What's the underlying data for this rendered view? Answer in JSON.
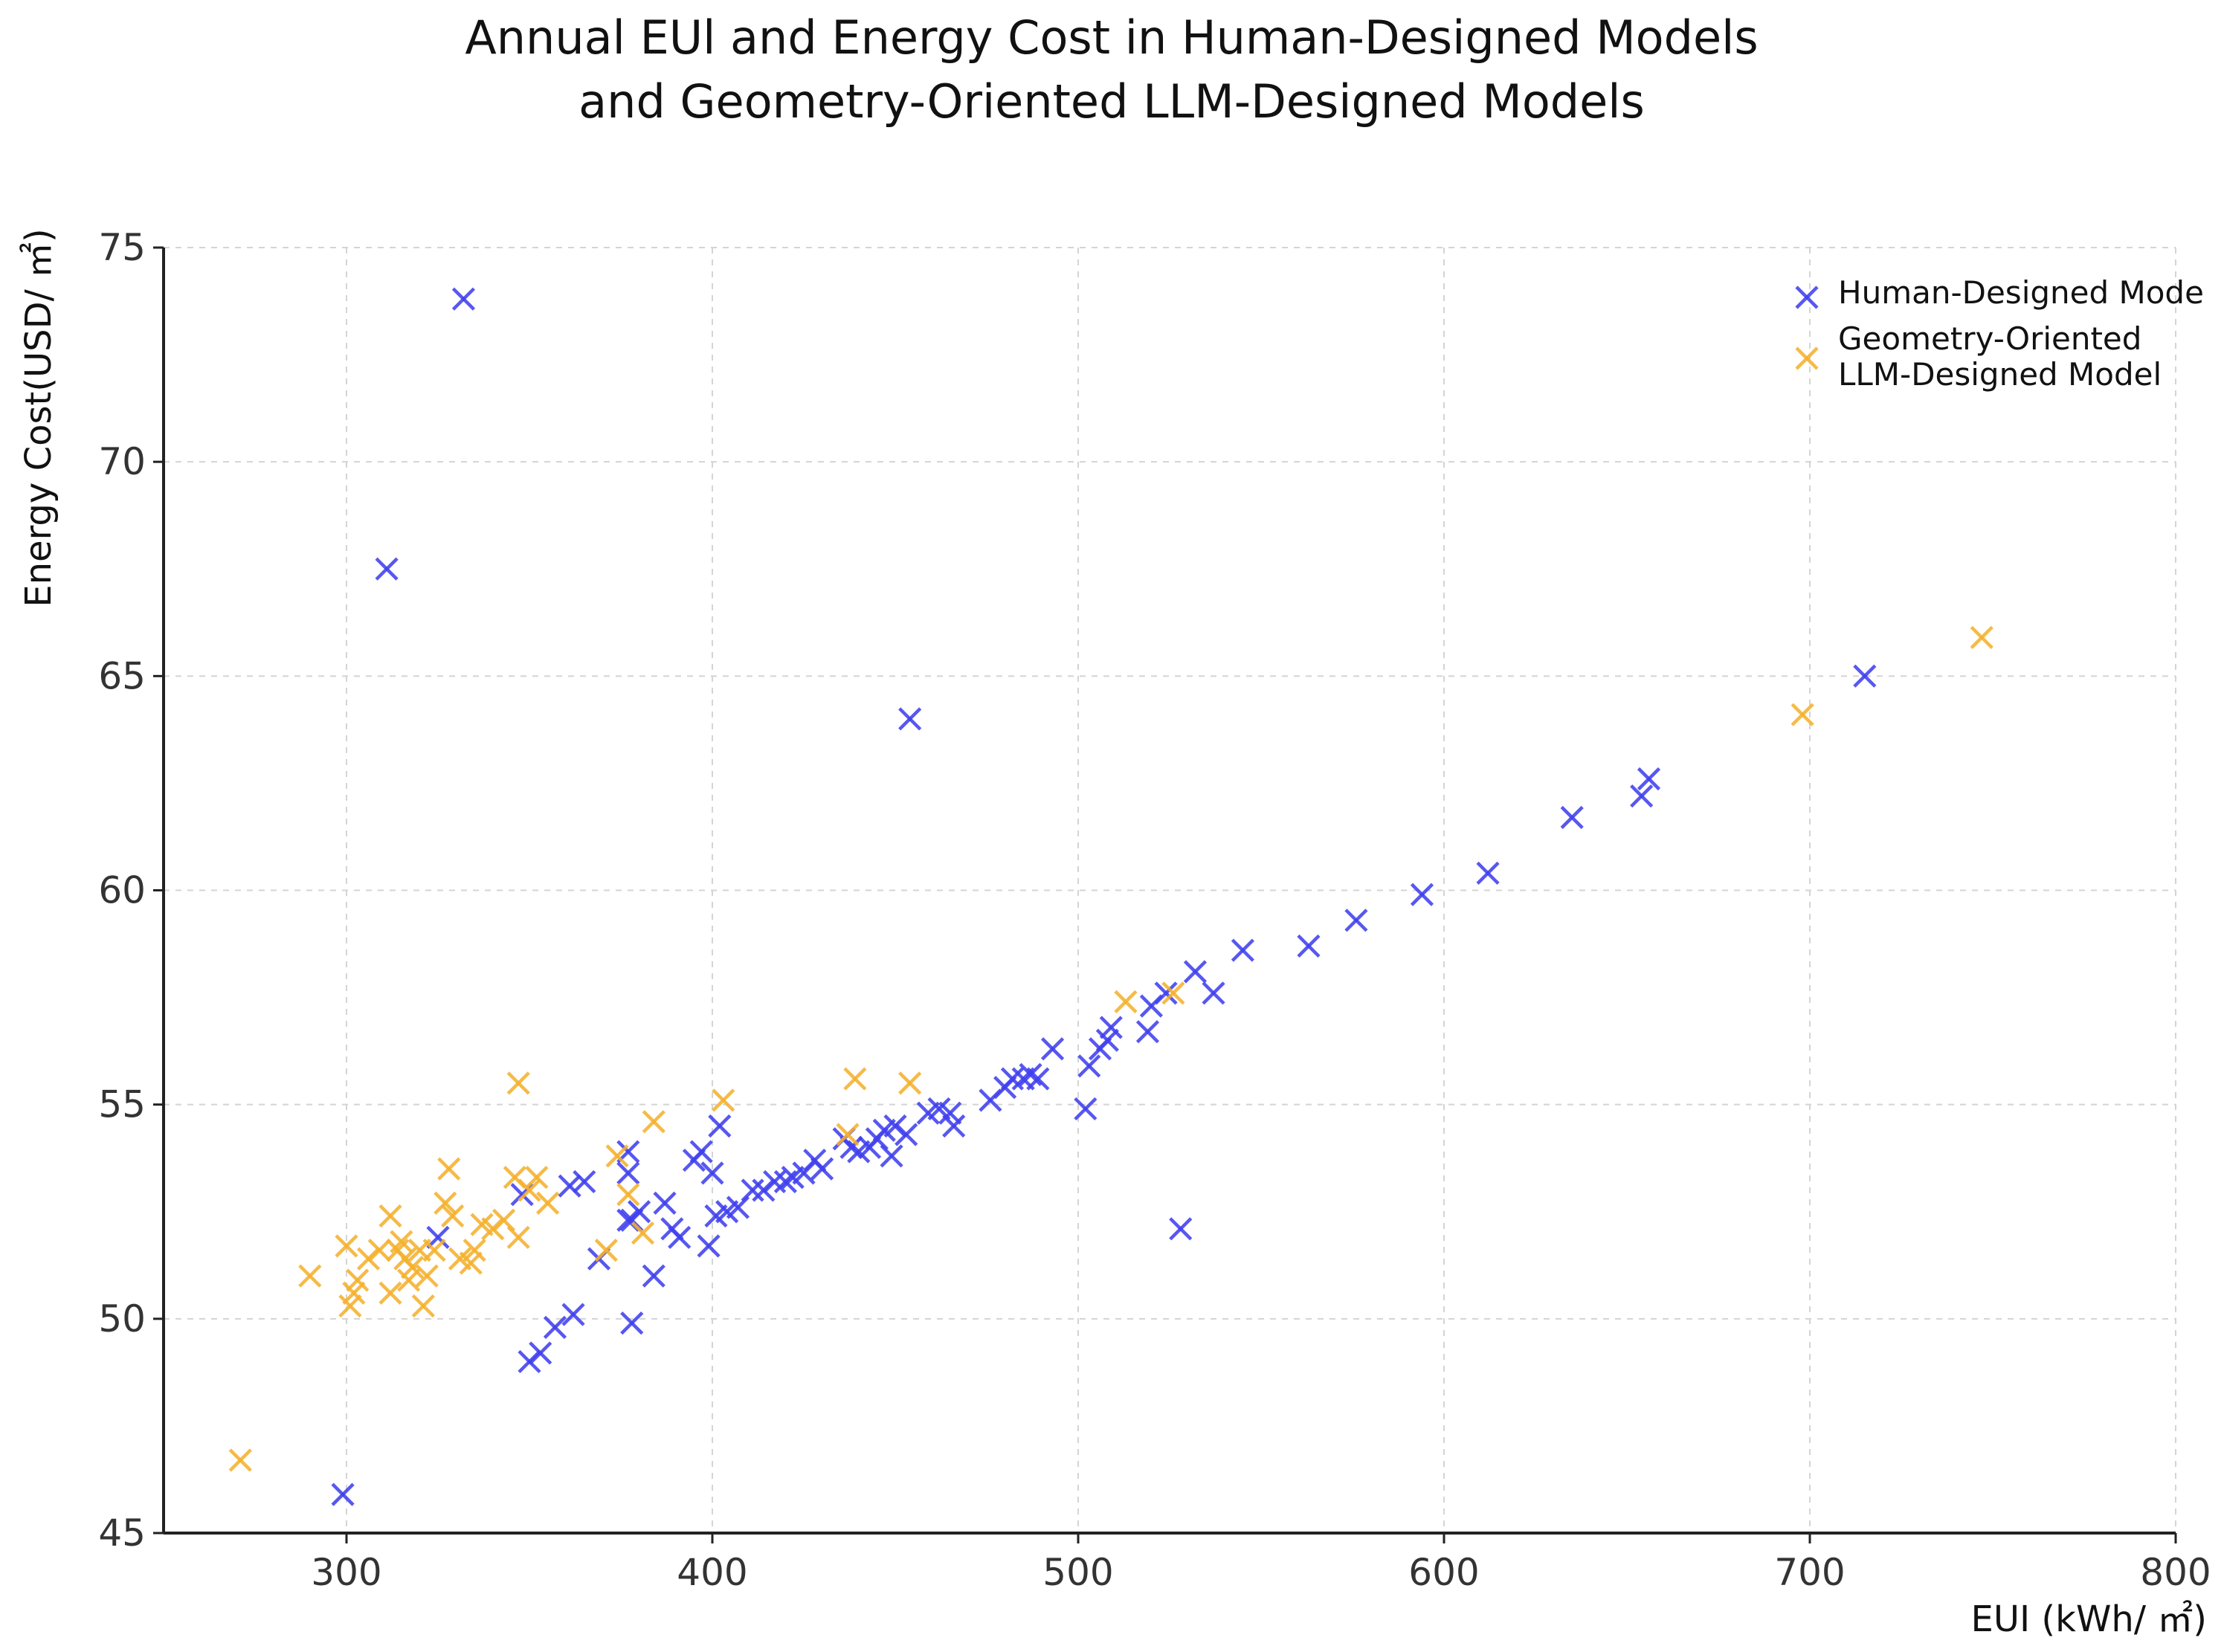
{
  "chart_data": {
    "type": "scatter",
    "title_lines": [
      "Annual EUl and Energy Cost in Human-Designed Models",
      "and Geometry-Oriented LLM-Designed Models"
    ],
    "xlabel": "EUI (kWh/ ㎡)",
    "ylabel": "Energy Cost(USD/ ㎡)",
    "xlim": [
      250,
      800
    ],
    "ylim": [
      45,
      75
    ],
    "xticks": [
      300,
      400,
      500,
      600,
      700,
      800
    ],
    "yticks": [
      45,
      50,
      55,
      60,
      65,
      70,
      75
    ],
    "grid": true,
    "legend_position": "top-right",
    "series": [
      {
        "name": "Human-Designed Mode",
        "color": "#4040ee",
        "marker": "x",
        "points": [
          [
            332,
            73.8
          ],
          [
            311,
            67.5
          ],
          [
            454,
            64
          ],
          [
            715,
            65
          ],
          [
            656,
            62.6
          ],
          [
            654,
            62.2
          ],
          [
            635,
            61.7
          ],
          [
            612,
            60.4
          ],
          [
            594,
            59.9
          ],
          [
            576,
            59.3
          ],
          [
            563,
            58.7
          ],
          [
            545,
            58.6
          ],
          [
            537,
            57.6
          ],
          [
            532,
            58.1
          ],
          [
            524,
            57.6
          ],
          [
            520,
            57.3
          ],
          [
            519,
            56.7
          ],
          [
            509,
            56.8
          ],
          [
            508,
            56.5
          ],
          [
            506,
            56.3
          ],
          [
            503,
            55.9
          ],
          [
            502,
            54.9
          ],
          [
            528,
            52.1
          ],
          [
            493,
            56.3
          ],
          [
            489,
            55.6
          ],
          [
            487,
            55.7
          ],
          [
            485,
            55.6
          ],
          [
            482,
            55.6
          ],
          [
            480,
            55.4
          ],
          [
            476,
            55.1
          ],
          [
            466,
            54.5
          ],
          [
            465,
            54.8
          ],
          [
            462,
            54.9
          ],
          [
            459,
            54.8
          ],
          [
            453,
            54.3
          ],
          [
            450,
            54.5
          ],
          [
            449,
            53.8
          ],
          [
            447,
            54.4
          ],
          [
            445,
            54.2
          ],
          [
            443,
            54
          ],
          [
            440,
            53.9
          ],
          [
            438,
            54
          ],
          [
            436,
            54.2
          ],
          [
            430,
            53.5
          ],
          [
            428,
            53.7
          ],
          [
            425,
            53.4
          ],
          [
            422,
            53.3
          ],
          [
            420,
            53.2
          ],
          [
            417,
            53.2
          ],
          [
            414,
            53
          ],
          [
            411,
            53
          ],
          [
            407,
            52.6
          ],
          [
            404,
            52.5
          ],
          [
            402,
            54.5
          ],
          [
            401,
            52.4
          ],
          [
            400,
            53.4
          ],
          [
            399,
            51.7
          ],
          [
            397,
            53.9
          ],
          [
            395,
            53.7
          ],
          [
            391,
            51.9
          ],
          [
            389,
            52.1
          ],
          [
            387,
            52.7
          ],
          [
            384,
            51
          ],
          [
            380,
            52.5
          ],
          [
            378,
            52.3
          ],
          [
            377,
            52.3
          ],
          [
            377,
            53.9
          ],
          [
            377,
            53.4
          ],
          [
            378,
            49.9
          ],
          [
            365,
            53.2
          ],
          [
            361,
            53.1
          ],
          [
            362,
            50.1
          ],
          [
            357,
            49.8
          ],
          [
            353,
            49.2
          ],
          [
            350,
            49
          ],
          [
            348,
            52.9
          ],
          [
            325,
            51.9
          ],
          [
            369,
            51.4
          ],
          [
            299,
            45.9
          ]
        ]
      },
      {
        "name": "Geometry-Oriented LLM-Designed Model",
        "color": "#f5b02e",
        "marker": "x",
        "points": [
          [
            747,
            65.9
          ],
          [
            698,
            64.1
          ],
          [
            526,
            57.6
          ],
          [
            513,
            57.4
          ],
          [
            454,
            55.5
          ],
          [
            439,
            55.6
          ],
          [
            437,
            54.3
          ],
          [
            403,
            55.1
          ],
          [
            384,
            54.6
          ],
          [
            381,
            52
          ],
          [
            377,
            52.9
          ],
          [
            374,
            53.8
          ],
          [
            371,
            51.6
          ],
          [
            355,
            52.7
          ],
          [
            352,
            53.3
          ],
          [
            350,
            53
          ],
          [
            347,
            55.5
          ],
          [
            346,
            53.3
          ],
          [
            347,
            51.9
          ],
          [
            343,
            52.3
          ],
          [
            340,
            52.1
          ],
          [
            337,
            52.2
          ],
          [
            335,
            51.6
          ],
          [
            334,
            51.3
          ],
          [
            331,
            51.4
          ],
          [
            329,
            52.4
          ],
          [
            328,
            53.5
          ],
          [
            327,
            52.7
          ],
          [
            324,
            51.6
          ],
          [
            322,
            51
          ],
          [
            321,
            50.3
          ],
          [
            320,
            51.6
          ],
          [
            318,
            51.2
          ],
          [
            317,
            50.9
          ],
          [
            316,
            51.4
          ],
          [
            315,
            51.8
          ],
          [
            314,
            51.6
          ],
          [
            312,
            52.4
          ],
          [
            312,
            50.6
          ],
          [
            309,
            51.6
          ],
          [
            306,
            51.4
          ],
          [
            303,
            50.9
          ],
          [
            302,
            50.6
          ],
          [
            301,
            50.3
          ],
          [
            300,
            51.7
          ],
          [
            290,
            51
          ],
          [
            271,
            46.7
          ]
        ]
      }
    ]
  }
}
